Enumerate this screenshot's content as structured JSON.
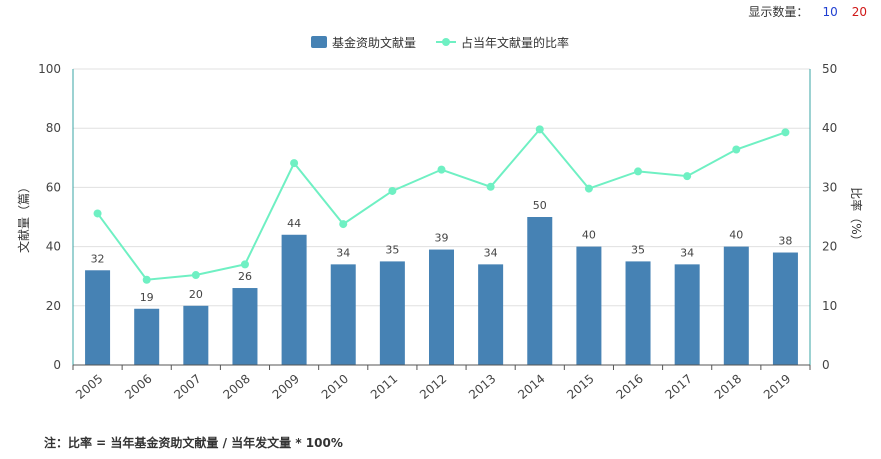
{
  "display_count": {
    "label": "显示数量：",
    "options": [
      "10",
      "20"
    ]
  },
  "note": "注：比率 = 当年基金资助文献量 / 当年发文量 * 100%",
  "colors": {
    "bar": "#4682b4",
    "line": "#6ff0c3",
    "axis_right": "#3aa6a6",
    "grid": "#e0e0e0"
  },
  "chart_data": {
    "type": "bar",
    "categories": [
      "2005",
      "2006",
      "2007",
      "2008",
      "2009",
      "2010",
      "2011",
      "2012",
      "2013",
      "2014",
      "2015",
      "2016",
      "2017",
      "2018",
      "2019"
    ],
    "series": [
      {
        "name": "基金资助文献量",
        "type": "bar",
        "axis": "left",
        "values": [
          32,
          19,
          20,
          26,
          44,
          34,
          35,
          39,
          34,
          50,
          40,
          35,
          34,
          40,
          38
        ]
      },
      {
        "name": "占当年文献量的比率",
        "type": "line",
        "axis": "right",
        "values": [
          25.6,
          14.4,
          15.2,
          17.0,
          34.1,
          23.8,
          29.4,
          33.0,
          30.1,
          39.8,
          29.8,
          32.7,
          31.9,
          36.4,
          39.3
        ]
      }
    ],
    "ylabel": "文献量（篇）",
    "ylabel_right": "比率（%）",
    "ylim": [
      0,
      100
    ],
    "ylim_right": [
      0,
      50
    ],
    "yticks": [
      "0",
      "20",
      "40",
      "60",
      "80",
      "100"
    ],
    "yticks_right": [
      "0",
      "10",
      "20",
      "30",
      "40",
      "50"
    ],
    "grid": true,
    "legend_position": "top-center"
  }
}
